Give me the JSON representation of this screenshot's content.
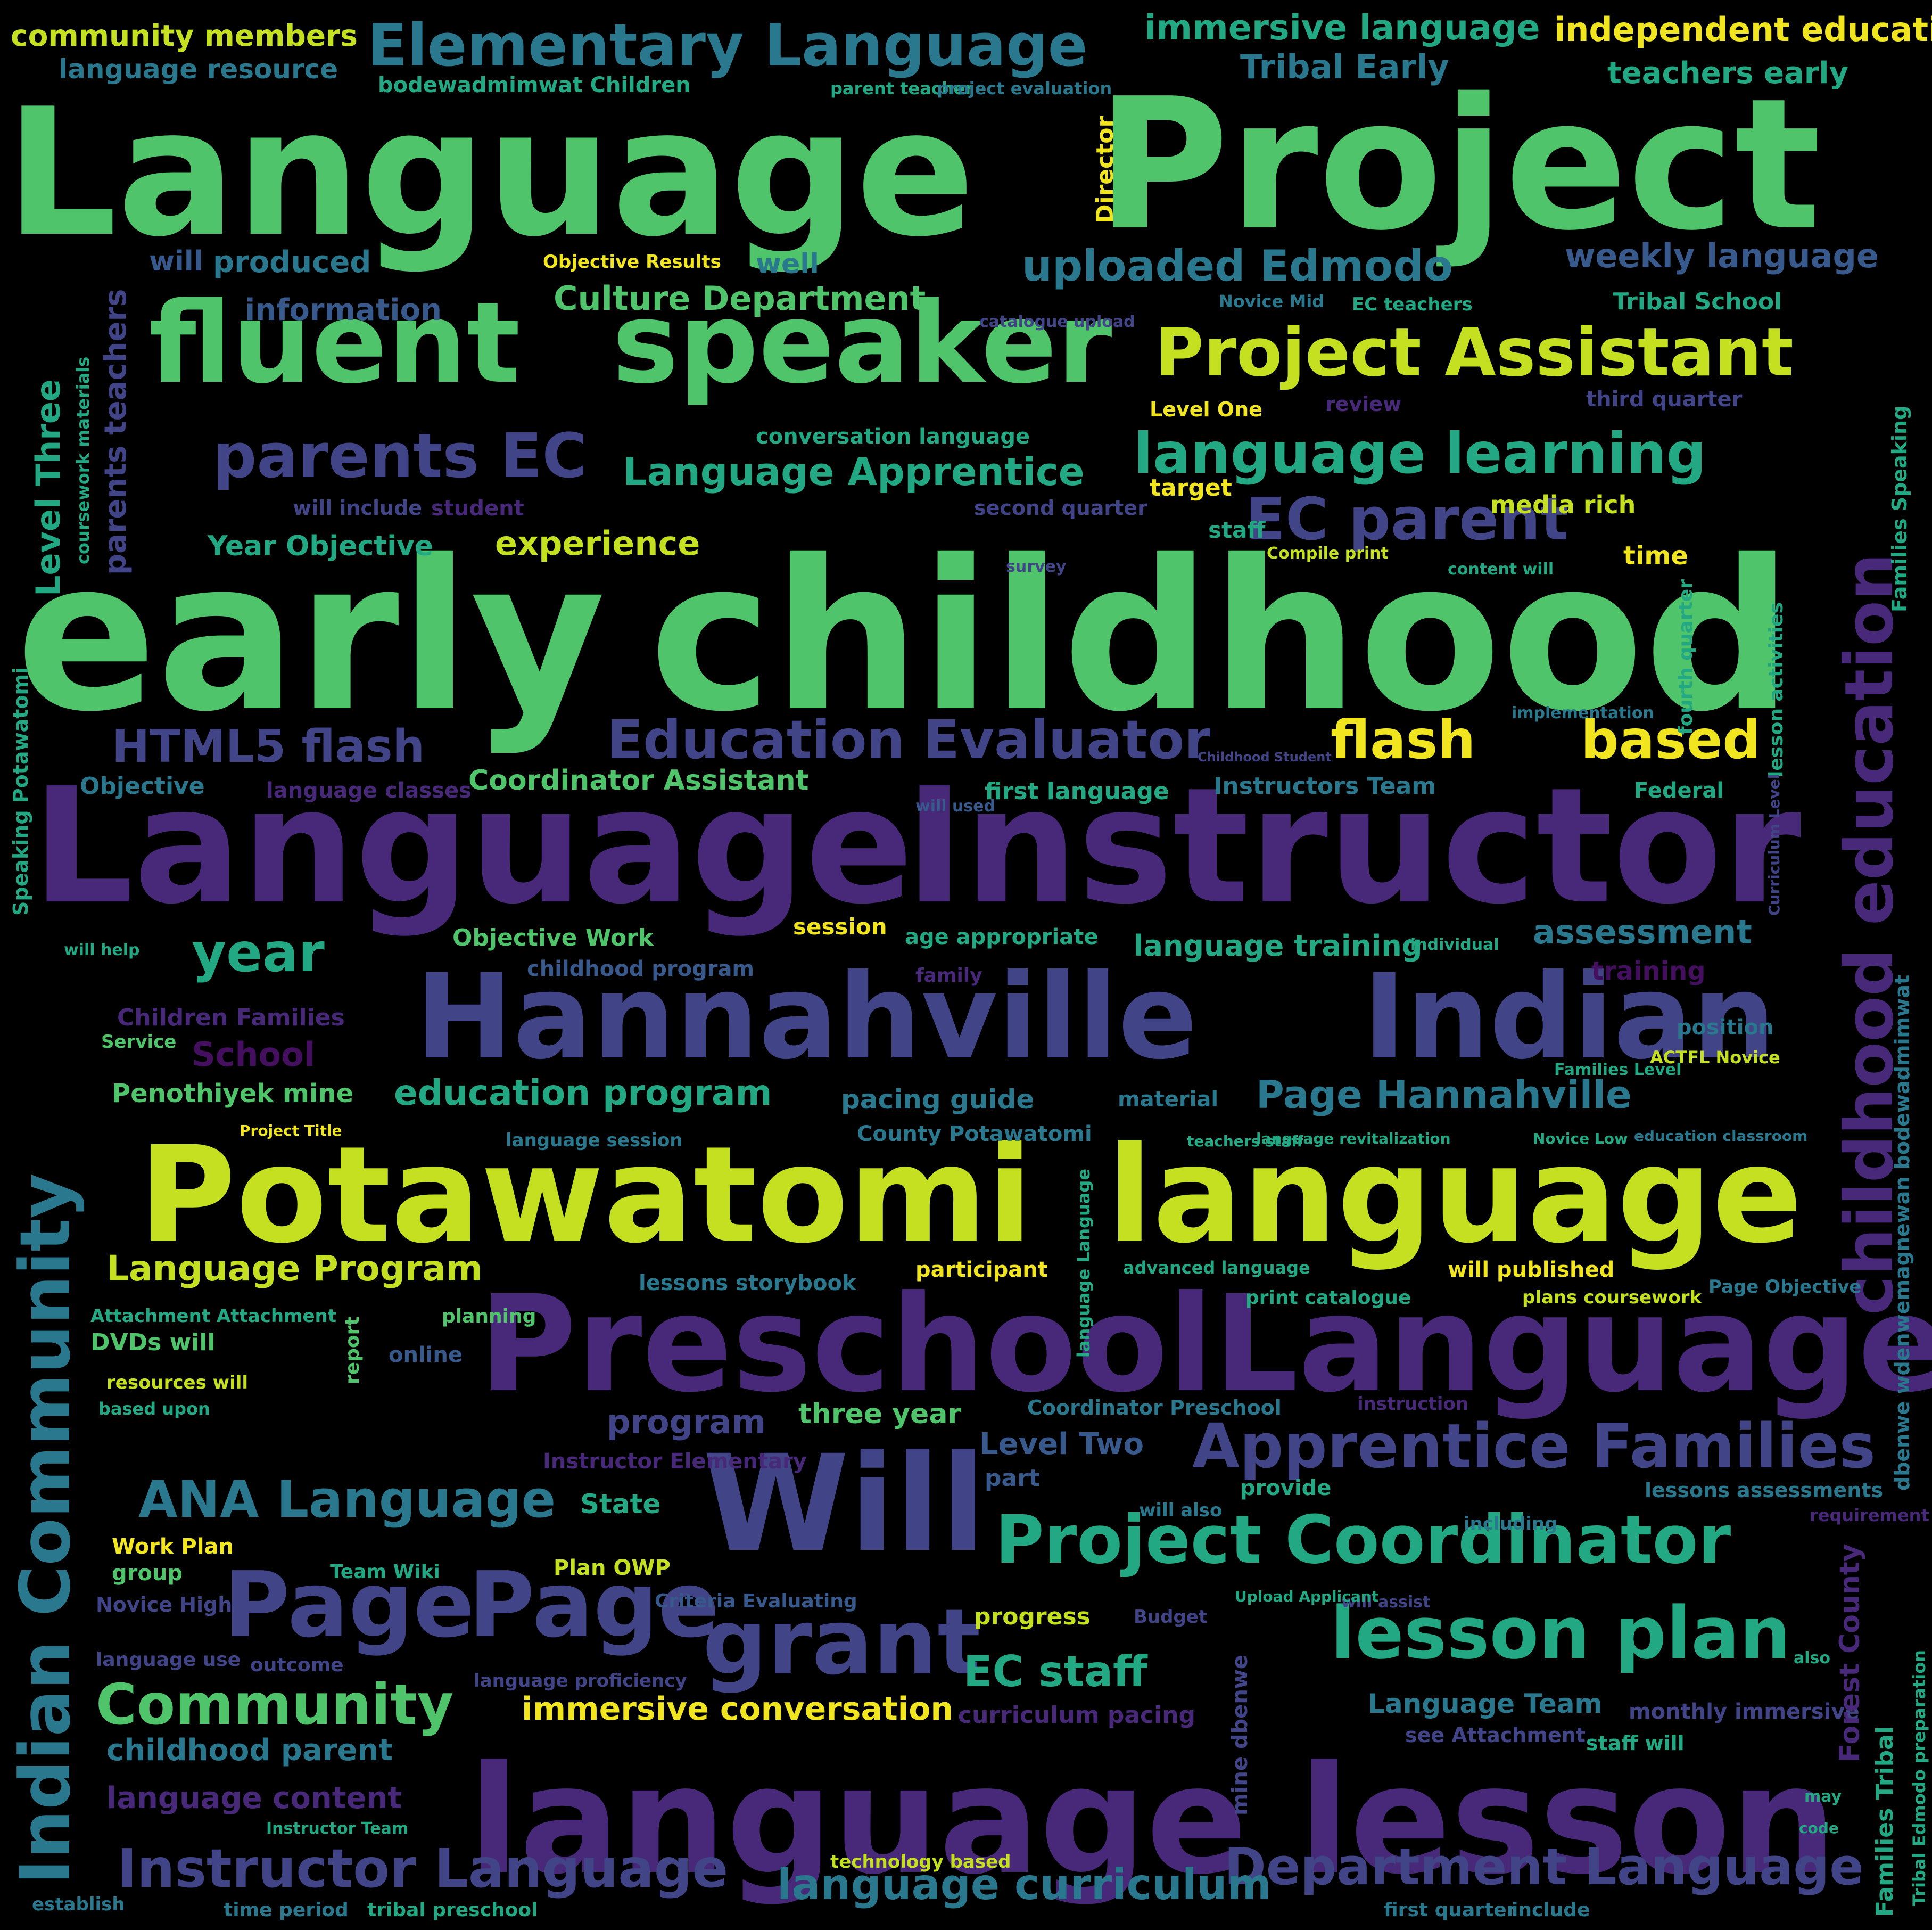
{
  "words": [
    "Language",
    "Project",
    "early",
    "childhood",
    "Language",
    "Instructor",
    "Hannahville",
    "Indian",
    "Potawatomi",
    "language",
    "Preschool",
    "Language",
    "language",
    "lesson",
    "fluent",
    "speaker",
    "Will",
    "Page",
    "Page",
    "grant",
    "Project Assistant",
    "Project Coordinator",
    "lesson plan",
    "parents EC",
    "EC parent",
    "language learning",
    "Elementary Language",
    "immersive language",
    "independent education",
    "community members",
    "Education Evaluator",
    "flash",
    "based",
    "HTML5 flash",
    "Indian Community",
    "childhood education",
    "Apprentice",
    "Families",
    "ANA Language",
    "Community",
    "Instructor Language",
    "Department Language",
    "language curriculum",
    "immersive conversation",
    "Language Apprentice",
    "Culture Department",
    "uploaded Edmodo",
    "weekly language",
    "Tribal Early",
    "teachers early",
    "Level Three",
    "parents teachers",
    "Year Objective",
    "experience",
    "Coordinator Assistant",
    "education program",
    "pacing guide",
    "Page Hannahville",
    "Penothiyek mine",
    "Language Program",
    "Objective Work",
    "assessment",
    "language training",
    "childhood program",
    "Children Families",
    "School",
    "year",
    "information",
    "produced",
    "will",
    "well",
    "Objective Results",
    "bodewadmimwat Children",
    "language resource",
    "parent teacher",
    "project evaluation",
    "conversation language",
    "Level One",
    "target",
    "media rich",
    "time",
    "staff",
    "review",
    "third quarter",
    "Tribal School",
    "second quarter",
    "first language",
    "Instructors Team",
    "Federal",
    "language classes",
    "Objective",
    "session",
    "age appropriate",
    "training",
    "position",
    "ACTFL Novice",
    "material",
    "County Potawatomi",
    "language session",
    "Project Title",
    "participant",
    "will published",
    "advanced language",
    "lessons storybook",
    "Attachment Attachment",
    "DVDs will",
    "planning",
    "report",
    "online",
    "resources will",
    "based upon",
    "program",
    "three year",
    "Level Two",
    "part",
    "will also",
    "provide",
    "State",
    "Instructor Elementary",
    "Coordinator Preschool",
    "instruction",
    "print catalogue",
    "plans coursework",
    "Page Objective",
    "lessons assessments",
    "requirement",
    "Work Plan",
    "group",
    "Team Wiki",
    "Plan OWP",
    "Novice High",
    "Criteria Evaluating",
    "progress",
    "Budget",
    "will assist",
    "EC staff",
    "language use",
    "outcome",
    "language proficiency",
    "curriculum pacing",
    "Language Team",
    "monthly immersive",
    "see Attachment",
    "staff will",
    "childhood parent",
    "language content",
    "Instructor Team",
    "time period",
    "tribal preschool",
    "technology based",
    "first quarter",
    "include",
    "establish",
    "Director",
    "mine dbenwe",
    "Forest County",
    "Families Tribal",
    "dbenwe wdenwemagnewan bodewadmimwat",
    "Families Speaking",
    "lesson activities",
    "fourth quarter",
    "Speaking Potawatomi",
    "coursework materials",
    "EC teachers",
    "Novice Mid",
    "catalogue upload",
    "Families Level",
    "content will",
    "survey",
    "Compile print",
    "implementation",
    "student",
    "will include",
    "Service",
    "will help",
    "teachers staff",
    "Novice Low",
    "education classroom",
    "individual",
    "family",
    "will used",
    "Tribal Edmodo preparation",
    "may",
    "also",
    "code",
    "Childhood Student",
    "Curriculum Level",
    "language revitalization",
    "language Language",
    "including",
    "Upload Applicant"
  ]
}
